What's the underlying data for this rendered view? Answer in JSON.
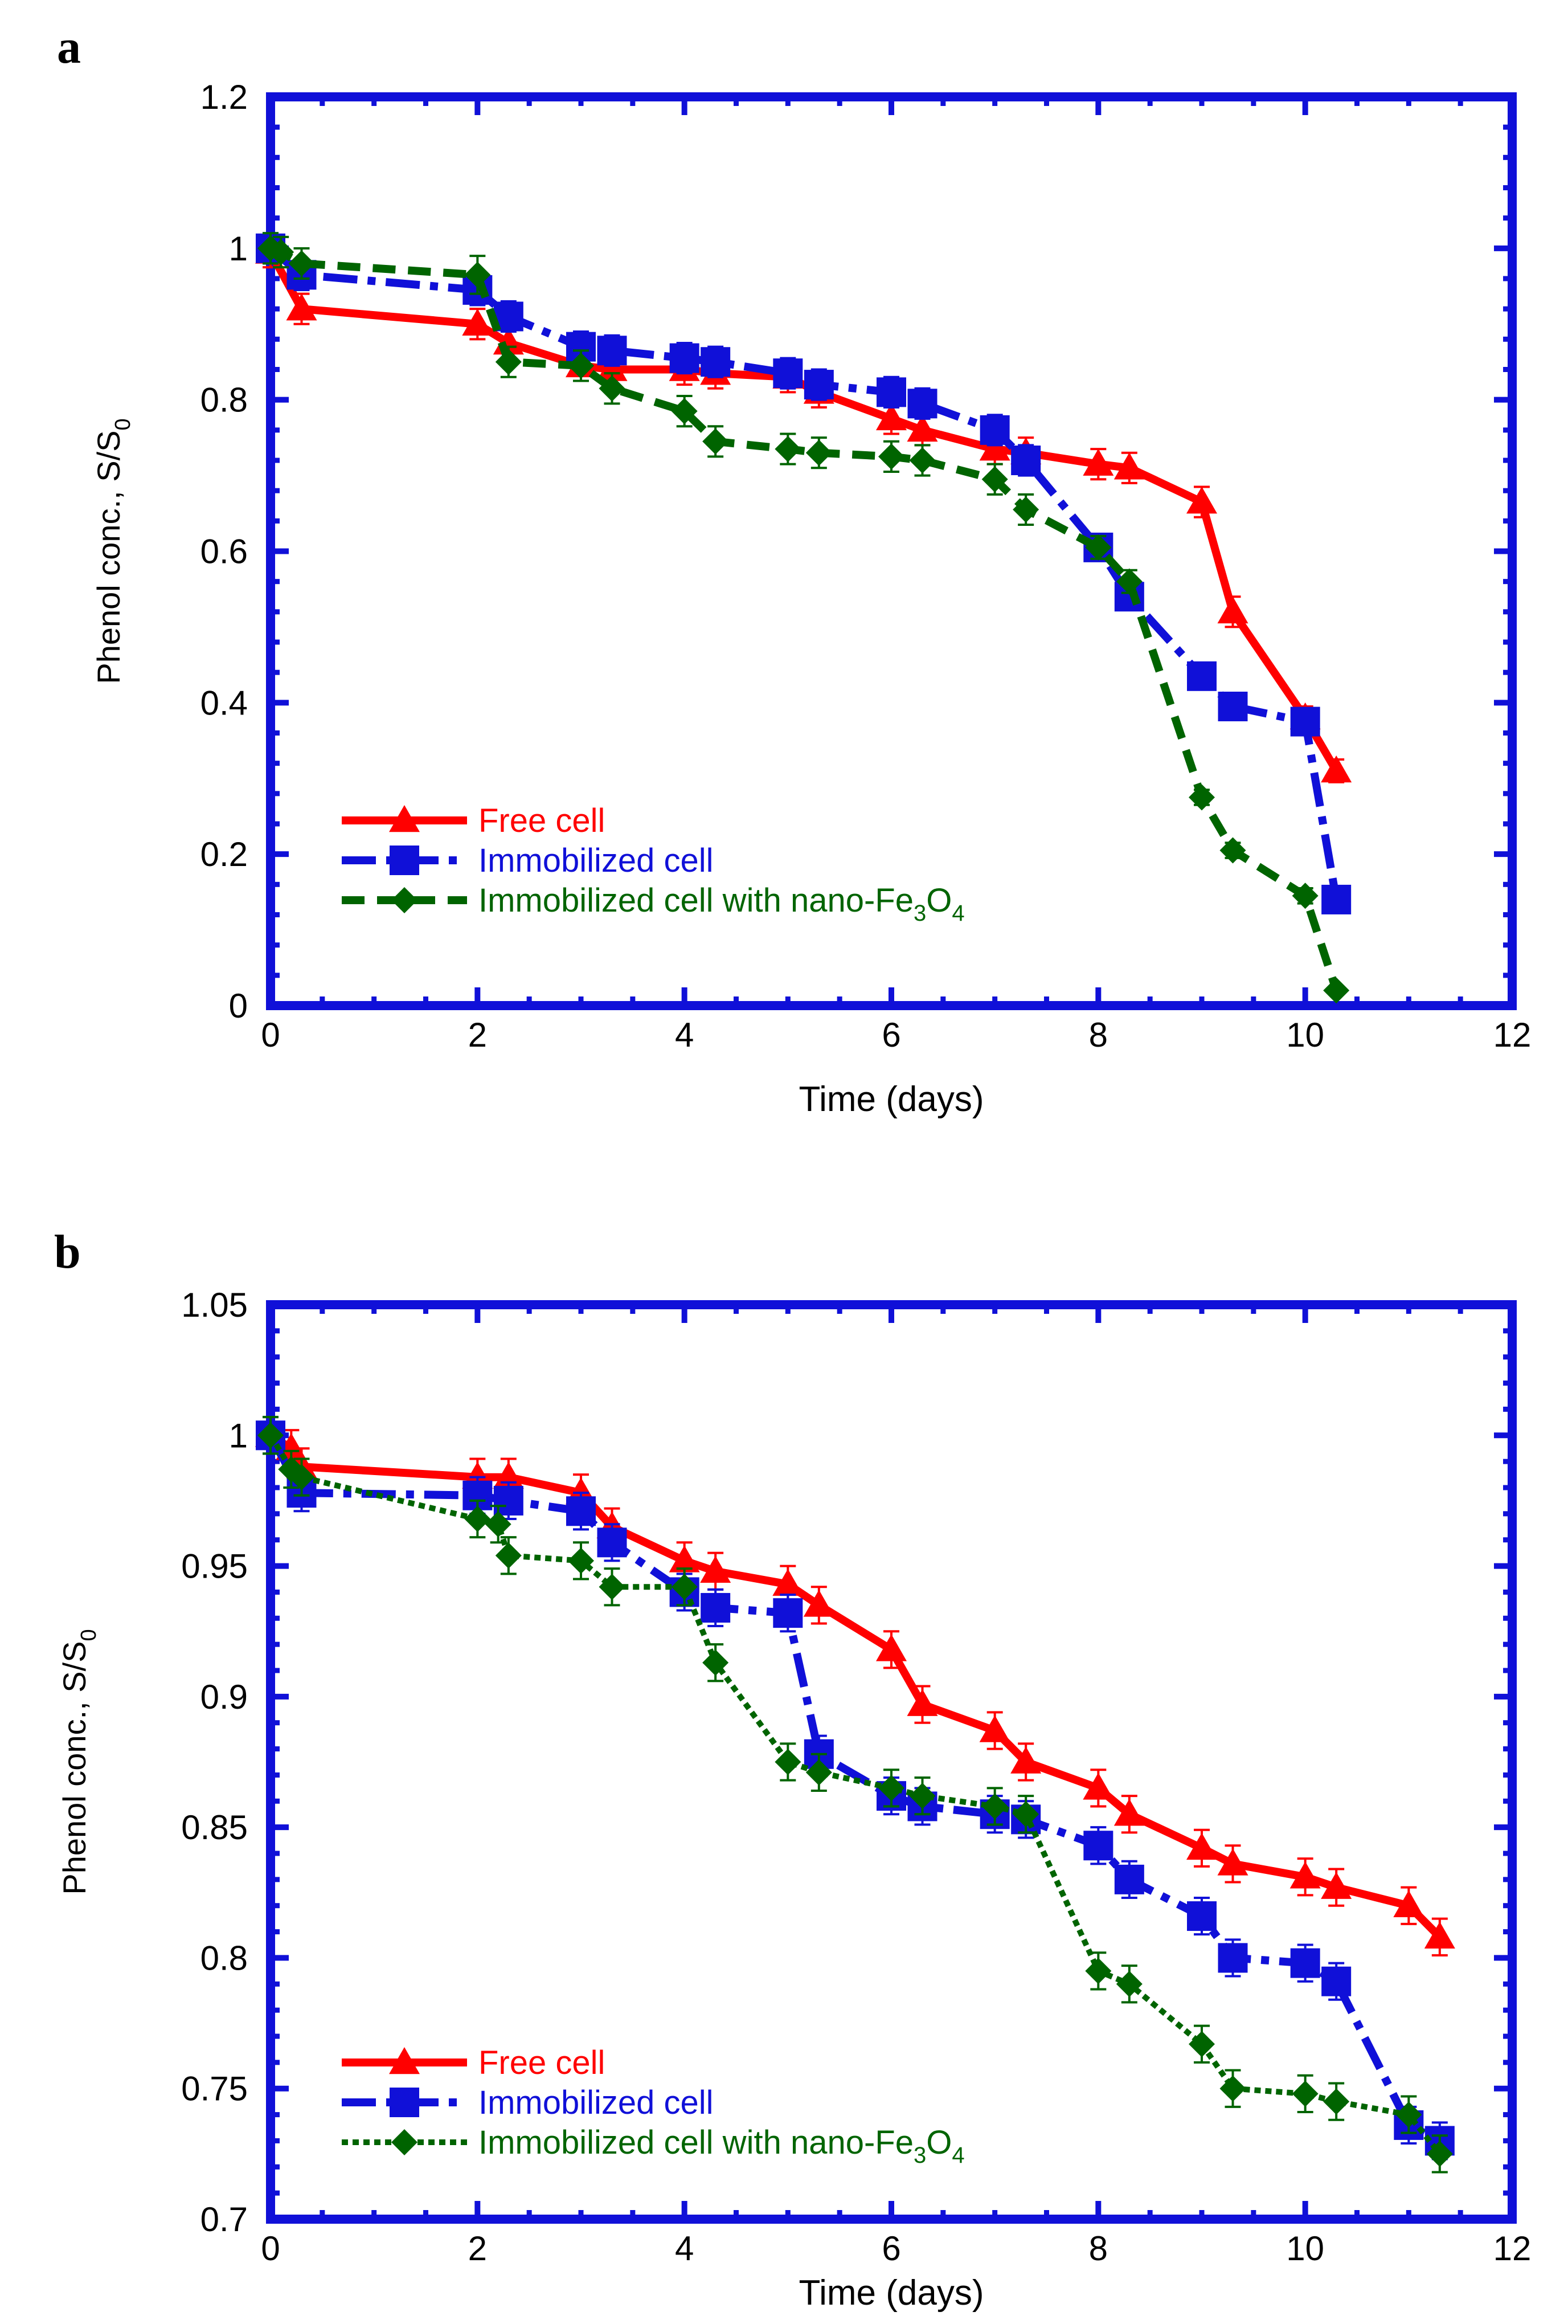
{
  "figure": {
    "panels": [
      "a",
      "b"
    ]
  },
  "colors": {
    "frame": "#1010d8",
    "free": "#ff0000",
    "immobilized": "#1010d8",
    "nano": "#006400",
    "axis_text": "#000000"
  },
  "chart_data": [
    {
      "panel": "a",
      "type": "line",
      "title": "",
      "xlabel": "Time (days)",
      "ylabel": "Phenol conc., S/S",
      "ylabel_sub": "0",
      "xlim": [
        0,
        12
      ],
      "ylim": [
        0,
        1.2
      ],
      "xticks": [
        0,
        2,
        4,
        6,
        8,
        10,
        12
      ],
      "yticks": [
        0,
        0.2,
        0.4,
        0.6,
        0.8,
        1,
        1.2
      ],
      "xtick_labels": [
        "0",
        "2",
        "4",
        "6",
        "8",
        "10",
        "12"
      ],
      "ytick_labels": [
        "0",
        "0.2",
        "0.4",
        "0.6",
        "0.8",
        "1",
        "1.2"
      ],
      "legend_position": "bottom-left",
      "series": [
        {
          "name": "Free cell",
          "color_key": "free",
          "marker": "triangle",
          "dash": "solid",
          "x": [
            0,
            0.3,
            2,
            2.3,
            3,
            3.3,
            4,
            4.3,
            5,
            5.3,
            6,
            6.3,
            7,
            7.3,
            8,
            8.3,
            9,
            9.3,
            10,
            10.3
          ],
          "y": [
            0.995,
            0.92,
            0.9,
            0.875,
            0.845,
            0.84,
            0.84,
            0.835,
            0.83,
            0.81,
            0.775,
            0.76,
            0.735,
            0.73,
            0.715,
            0.71,
            0.665,
            0.52,
            0.38,
            0.31
          ],
          "err": [
            0.02,
            0.02,
            0.02,
            0.02,
            0.02,
            0.02,
            0.02,
            0.02,
            0.02,
            0.02,
            0.02,
            0.02,
            0.02,
            0.02,
            0.02,
            0.02,
            0.02,
            0.02,
            0.015,
            0.015
          ]
        },
        {
          "name": "Immobilized cell",
          "color_key": "immobilized",
          "marker": "square",
          "dash": "dashdot",
          "x": [
            0,
            0.3,
            2,
            2.3,
            3,
            3.3,
            4,
            4.3,
            5,
            5.3,
            6,
            6.3,
            7,
            7.3,
            8,
            8.3,
            9,
            9.3,
            10,
            10.3
          ],
          "y": [
            1.0,
            0.965,
            0.945,
            0.91,
            0.87,
            0.865,
            0.855,
            0.85,
            0.835,
            0.82,
            0.81,
            0.795,
            0.76,
            0.72,
            0.605,
            0.54,
            0.435,
            0.395,
            0.375,
            0.14
          ],
          "err": [
            0.02,
            0.02,
            0.02,
            0.02,
            0.02,
            0.02,
            0.02,
            0.02,
            0.02,
            0.02,
            0.02,
            0.02,
            0.02,
            0.02,
            0.015,
            0.015,
            0.015,
            0.015,
            0.015,
            0.01
          ]
        },
        {
          "name": "Immobilized cell with nano-Fe",
          "name_sub1": "3",
          "name_mid": "O",
          "name_sub2": "4",
          "color_key": "nano",
          "marker": "diamond",
          "dash": "dashed",
          "x": [
            0,
            0.1,
            0.3,
            2,
            2.3,
            3,
            3.3,
            4,
            4.3,
            5,
            5.3,
            6,
            6.3,
            7,
            7.3,
            8,
            8.3,
            9,
            9.3,
            10,
            10.3
          ],
          "y": [
            1.0,
            0.995,
            0.98,
            0.965,
            0.85,
            0.845,
            0.815,
            0.785,
            0.745,
            0.735,
            0.73,
            0.725,
            0.72,
            0.695,
            0.655,
            0.605,
            0.56,
            0.275,
            0.205,
            0.145,
            0.02
          ],
          "err": [
            0.02,
            0.02,
            0.02,
            0.025,
            0.02,
            0.02,
            0.02,
            0.02,
            0.02,
            0.02,
            0.02,
            0.02,
            0.02,
            0.02,
            0.02,
            0.015,
            0.015,
            0.01,
            0.01,
            0.01,
            0.005
          ]
        }
      ]
    },
    {
      "panel": "b",
      "type": "line",
      "title": "",
      "xlabel": "Time (days)",
      "ylabel": "Phenol conc., S/S",
      "ylabel_sub": "0",
      "xlim": [
        0,
        12
      ],
      "ylim": [
        0.7,
        1.05
      ],
      "xticks": [
        0,
        2,
        4,
        6,
        8,
        10,
        12
      ],
      "yticks": [
        0.7,
        0.75,
        0.8,
        0.85,
        0.9,
        0.95,
        1,
        1.05
      ],
      "xtick_labels": [
        "0",
        "2",
        "4",
        "6",
        "8",
        "10",
        "12"
      ],
      "ytick_labels": [
        "0.7",
        "0.75",
        "0.8",
        "0.85",
        "0.9",
        "0.95",
        "1",
        "1.05"
      ],
      "legend_position": "bottom-left",
      "series": [
        {
          "name": "Free cell",
          "color_key": "free",
          "marker": "triangle",
          "dash": "solid",
          "x": [
            0,
            0.2,
            0.3,
            2,
            2.3,
            3,
            3.3,
            4,
            4.3,
            5,
            5.3,
            6,
            6.3,
            7,
            7.3,
            8,
            8.3,
            9,
            9.3,
            10,
            10.3,
            11,
            11.3
          ],
          "y": [
            1.0,
            0.995,
            0.988,
            0.984,
            0.984,
            0.978,
            0.965,
            0.952,
            0.948,
            0.943,
            0.935,
            0.918,
            0.897,
            0.887,
            0.875,
            0.865,
            0.855,
            0.842,
            0.836,
            0.831,
            0.827,
            0.82,
            0.808
          ],
          "err": [
            0.007,
            0.007,
            0.007,
            0.007,
            0.007,
            0.007,
            0.007,
            0.007,
            0.007,
            0.007,
            0.007,
            0.007,
            0.007,
            0.007,
            0.007,
            0.007,
            0.007,
            0.007,
            0.007,
            0.007,
            0.007,
            0.007,
            0.007
          ]
        },
        {
          "name": "Immobilized cell",
          "color_key": "immobilized",
          "marker": "square",
          "dash": "dashdot",
          "x": [
            0,
            0.3,
            2,
            2.3,
            3,
            3.3,
            4,
            4.3,
            5,
            5.3,
            6,
            6.3,
            7,
            7.3,
            8,
            8.3,
            9,
            9.3,
            10,
            10.3,
            11,
            11.3
          ],
          "y": [
            1.0,
            0.978,
            0.977,
            0.975,
            0.971,
            0.959,
            0.94,
            0.934,
            0.932,
            0.878,
            0.862,
            0.858,
            0.855,
            0.853,
            0.843,
            0.83,
            0.816,
            0.8,
            0.798,
            0.791,
            0.736,
            0.73
          ],
          "err": [
            0.007,
            0.007,
            0.007,
            0.007,
            0.007,
            0.007,
            0.007,
            0.007,
            0.007,
            0.007,
            0.007,
            0.007,
            0.007,
            0.007,
            0.007,
            0.007,
            0.007,
            0.007,
            0.007,
            0.007,
            0.007,
            0.007
          ]
        },
        {
          "name": "Immobilized cell with nano-Fe",
          "name_sub1": "3",
          "name_mid": "O",
          "name_sub2": "4",
          "color_key": "nano",
          "marker": "diamond",
          "dash": "dotted",
          "x": [
            0,
            0.2,
            0.3,
            2,
            2.2,
            2.3,
            3,
            3.3,
            4,
            4.3,
            5,
            5.3,
            6,
            6.3,
            7,
            7.3,
            8,
            8.3,
            9,
            9.3,
            10,
            10.3,
            11,
            11.3
          ],
          "y": [
            1.0,
            0.987,
            0.984,
            0.968,
            0.966,
            0.954,
            0.952,
            0.942,
            0.942,
            0.913,
            0.875,
            0.871,
            0.865,
            0.862,
            0.858,
            0.855,
            0.795,
            0.79,
            0.767,
            0.75,
            0.748,
            0.745,
            0.74,
            0.725
          ],
          "err": [
            0.007,
            0.007,
            0.007,
            0.007,
            0.007,
            0.007,
            0.007,
            0.007,
            0.007,
            0.007,
            0.007,
            0.007,
            0.007,
            0.007,
            0.007,
            0.007,
            0.007,
            0.007,
            0.007,
            0.007,
            0.007,
            0.007,
            0.007,
            0.007
          ]
        }
      ]
    }
  ]
}
